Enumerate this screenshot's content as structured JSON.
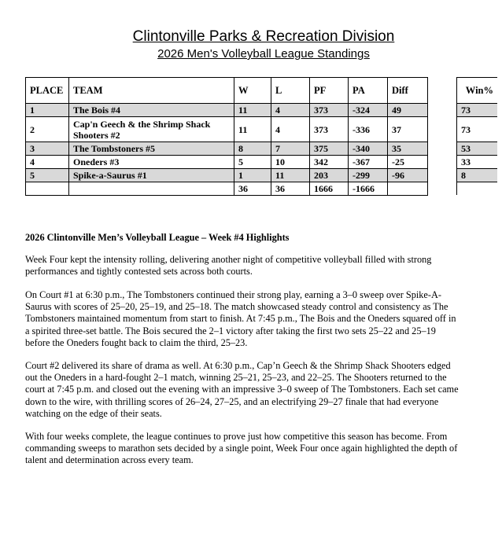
{
  "title": "Clintonville Parks & Recreation Division",
  "subtitle": "2026 Men's Volleyball League Standings",
  "standings": {
    "headers": [
      "PLACE",
      "TEAM",
      "W",
      "L",
      "PF",
      "PA",
      "Diff"
    ],
    "rows": [
      [
        "1",
        "The Bois #4",
        "11",
        "4",
        "373",
        "-324",
        "49"
      ],
      [
        "2",
        "Cap'n Geech & the Shrimp Shack Shooters #2",
        "11",
        "4",
        "373",
        "-336",
        "37"
      ],
      [
        "3",
        "The Tombstoners #5",
        "8",
        "7",
        "375",
        "-340",
        "35"
      ],
      [
        "4",
        "Oneders #3",
        "5",
        "10",
        "342",
        "-367",
        "-25"
      ],
      [
        "5",
        "Spike-a-Saurus #1",
        "1",
        "11",
        "203",
        "-299",
        "-96"
      ]
    ],
    "totals": [
      "",
      "",
      "36",
      "36",
      "1666",
      "-1666",
      ""
    ],
    "shade_color": "#d9d9d9"
  },
  "winpct": {
    "header": "Win%",
    "values": [
      "73",
      "73",
      "53",
      "33",
      "8"
    ]
  },
  "article": {
    "heading": "2026 Clintonville Men’s Volleyball League – Week #4 Highlights",
    "paragraphs": [
      [
        "Week Four kept the intensity rolling, delivering another night of competitive volleyball filled with strong",
        "performances and tightly contested sets across both courts."
      ],
      [
        "On Court #1 at 6:30 p.m., The Tombstoners continued their strong play, earning a 3–0 sweep over Spike-A-",
        "Saurus with scores of 25–20, 25–19, and 25–18. The match showcased steady control and consistency as The",
        "Tombstoners maintained momentum from start to finish. At 7:45 p.m., The Bois and the Oneders squared off in",
        "a spirited three-set battle. The Bois secured the 2–1 victory after taking the first two sets 25–22 and 25–19",
        "before the Oneders fought back to claim the third, 25–23."
      ],
      [
        "Court #2 delivered its share of drama as well. At 6:30 p.m., Cap’n Geech & the Shrimp Shack Shooters edged",
        "out the Oneders in a hard-fought 2–1 match, winning 25–21, 25–23, and 22–25. The Shooters returned to the",
        "court at 7:45 p.m. and closed out the evening with an impressive 3–0 sweep of The Tombstoners. Each set came",
        "down to the wire, with thrilling scores of 26–24, 27–25, and an electrifying 29–27 finale that had everyone",
        "watching on the edge of their seats."
      ],
      [
        "With four weeks complete, the league continues to prove just how competitive this season has become. From",
        "commanding sweeps to marathon sets decided by a single point, Week Four once again highlighted the depth of",
        "talent and determination across every team."
      ]
    ]
  }
}
